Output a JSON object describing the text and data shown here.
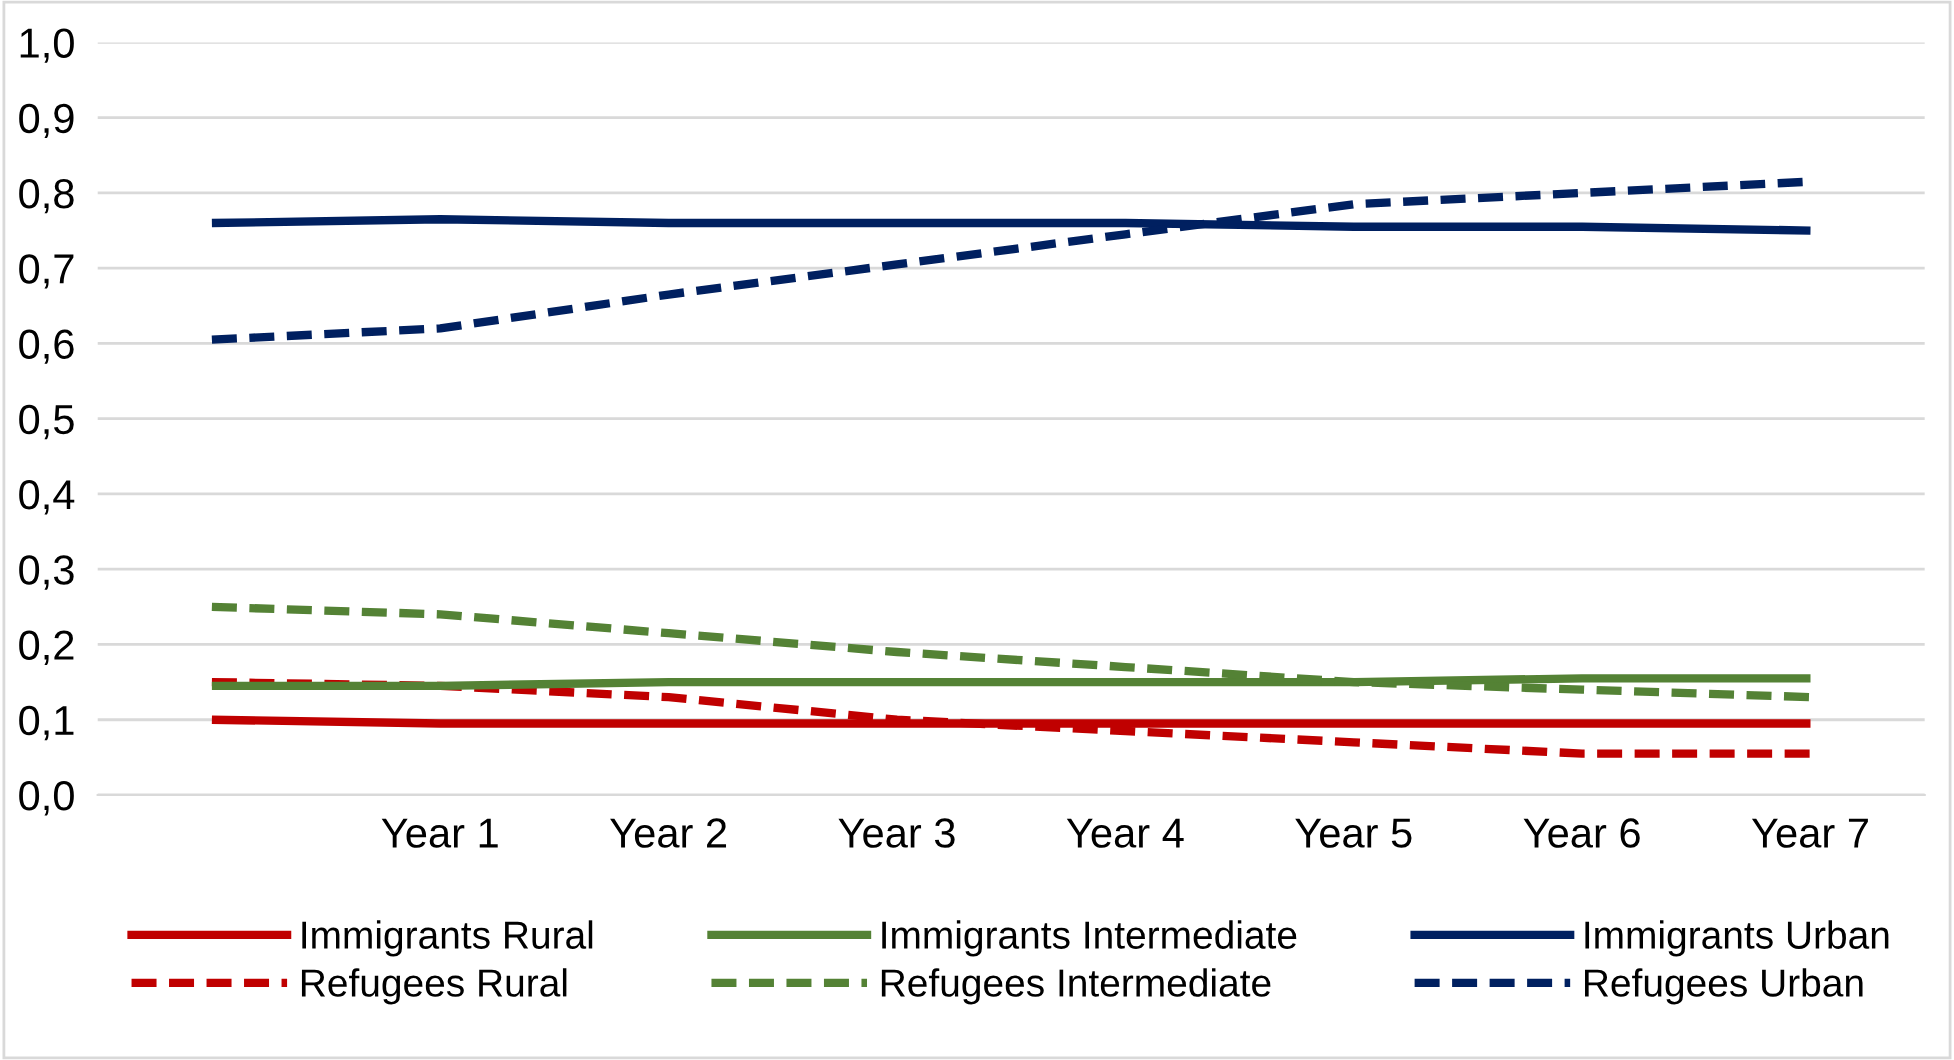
{
  "chart_data": {
    "type": "line",
    "categories": [
      null,
      "Year 1",
      "Year 2",
      "Year 3",
      "Year 4",
      "Year 5",
      "Year 6",
      "Year 7"
    ],
    "series": [
      {
        "name": "Immigrants Rural",
        "color": "#c00000",
        "line_style": "solid",
        "values": [
          0.1,
          0.095,
          0.095,
          0.095,
          0.095,
          0.095,
          0.095,
          0.095
        ]
      },
      {
        "name": "Refugees Rural",
        "color": "#c00000",
        "line_style": "dashed",
        "values": [
          0.15,
          0.145,
          0.13,
          0.1,
          0.085,
          0.07,
          0.055,
          0.055
        ]
      },
      {
        "name": "Immigrants Intermediate",
        "color": "#548235",
        "line_style": "solid",
        "values": [
          0.145,
          0.145,
          0.15,
          0.15,
          0.15,
          0.15,
          0.155,
          0.155
        ]
      },
      {
        "name": "Refugees Intermediate",
        "color": "#548235",
        "line_style": "dashed",
        "values": [
          0.25,
          0.24,
          0.215,
          0.19,
          0.17,
          0.15,
          0.14,
          0.13
        ]
      },
      {
        "name": "Immigrants Urban",
        "color": "#002060",
        "line_style": "solid",
        "values": [
          0.76,
          0.765,
          0.76,
          0.76,
          0.76,
          0.755,
          0.755,
          0.75
        ]
      },
      {
        "name": "Refugees Urban",
        "color": "#002060",
        "line_style": "dashed",
        "values": [
          0.605,
          0.62,
          0.665,
          0.705,
          0.745,
          0.785,
          0.8,
          0.815
        ]
      }
    ],
    "ylim": [
      0,
      1
    ],
    "yticks": [
      {
        "value": 0,
        "label": "0,0"
      },
      {
        "value": 0.1,
        "label": "0,1"
      },
      {
        "value": 0.2,
        "label": "0,2"
      },
      {
        "value": 0.3,
        "label": "0,3"
      },
      {
        "value": 0.4,
        "label": "0,4"
      },
      {
        "value": 0.5,
        "label": "0,5"
      },
      {
        "value": 0.6,
        "label": "0,6"
      },
      {
        "value": 0.7,
        "label": "0,7"
      },
      {
        "value": 0.8,
        "label": "0,8"
      },
      {
        "value": 0.9,
        "label": "0,9"
      },
      {
        "value": 1.0,
        "label": "1,0"
      }
    ],
    "grid": "y",
    "legend": "bottom",
    "marker": "none"
  }
}
